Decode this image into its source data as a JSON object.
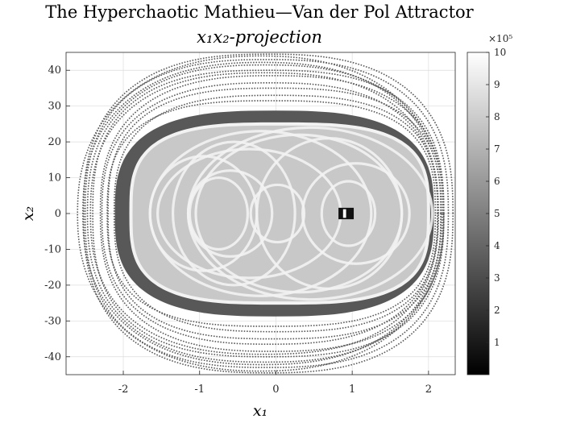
{
  "chart_data": {
    "type": "scatter",
    "title": "The Hyperchaotic Mathieu—Van der Pol Attractor",
    "subtitle": "x₁x₂-projection",
    "xlabel": "x₁",
    "ylabel": "x₂",
    "xlim": [
      -2.75,
      2.35
    ],
    "ylim": [
      -45,
      45
    ],
    "xticks": [
      -2,
      -1,
      0,
      1,
      2
    ],
    "yticks": [
      -40,
      -30,
      -20,
      -10,
      0,
      10,
      20,
      30,
      40
    ],
    "grid": true,
    "colormap": "gray",
    "colorbar": {
      "range": [
        0,
        10
      ],
      "ticks": [
        1,
        2,
        3,
        4,
        5,
        6,
        7,
        8,
        9,
        10
      ],
      "exponent_label": "×10⁵"
    },
    "colors": {
      "outer_orbits": "#585858",
      "inner_core": "#f2f2f2",
      "core_fill": "#c8c8c8",
      "background": "#ffffff"
    }
  }
}
